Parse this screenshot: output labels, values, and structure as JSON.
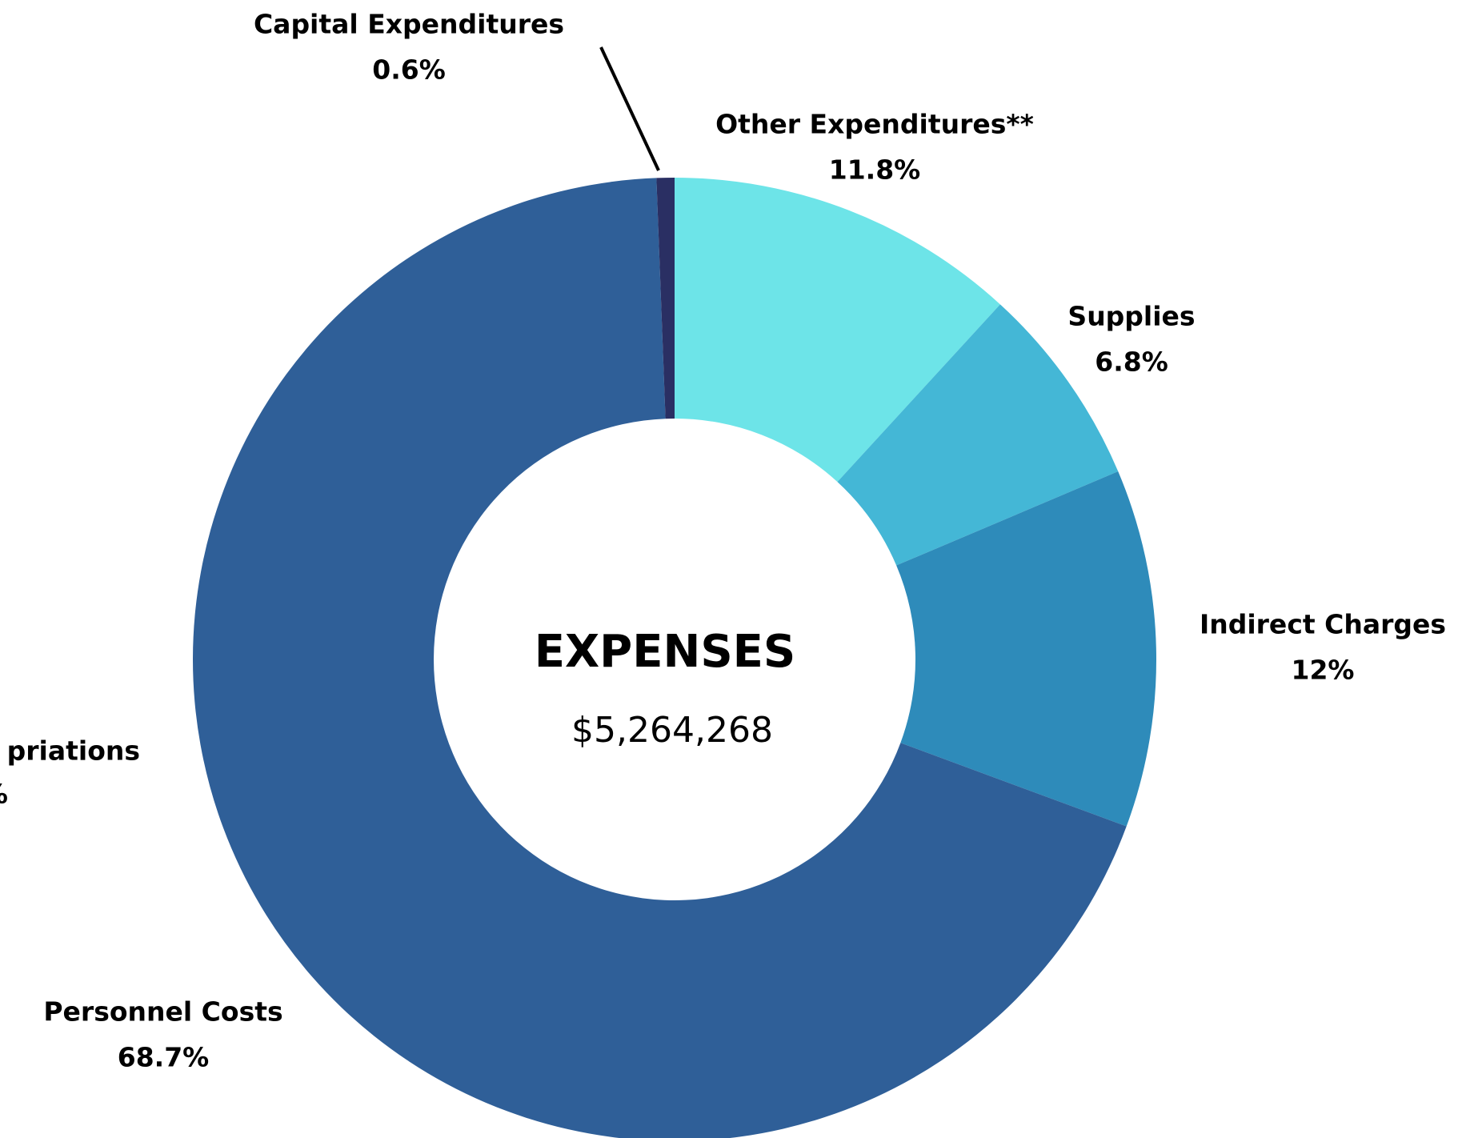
{
  "chart_data": {
    "type": "donut",
    "title": "EXPENSES",
    "subtitle": "$5,264,268",
    "categories": [
      "Other Expenditures**",
      "Supplies",
      "Indirect Charges",
      "Personnel Costs",
      "Capital Expenditures"
    ],
    "values": [
      11.8,
      6.8,
      12,
      68.7,
      0.6
    ],
    "value_labels": [
      "11.8%",
      "6.8%",
      "12%",
      "68.7%",
      "0.6%"
    ],
    "colors": [
      "#6de4e8",
      "#44b7d6",
      "#2e8bba",
      "#2f5f98",
      "#2a2f63"
    ],
    "annotations": [
      "priations",
      "%"
    ]
  }
}
